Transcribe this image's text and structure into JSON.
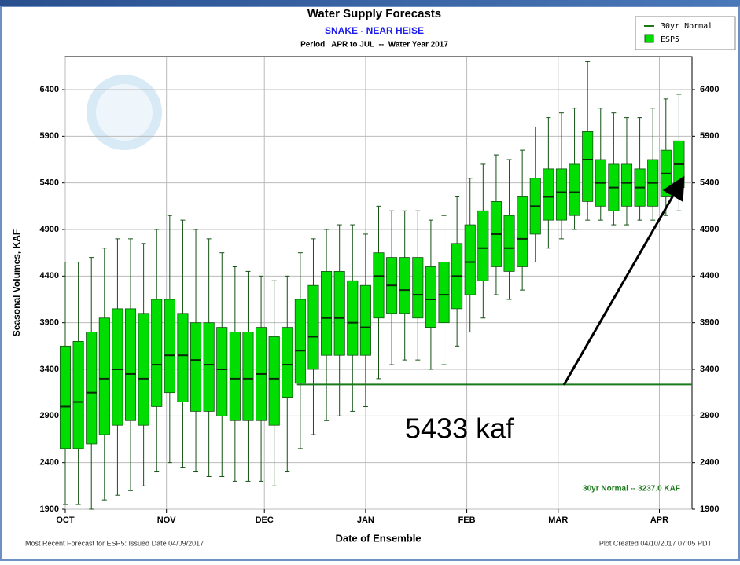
{
  "chart_data": {
    "type": "box",
    "title": "Water Supply Forecasts",
    "subtitle": "SNAKE - NEAR HEISE",
    "period": "Period   APR to JUL  --  Water Year 2017",
    "y_label": "Seasonal Volumes, KAF",
    "x_label": "Date of Ensemble",
    "footer_left": "Most Recent Forecast for ESP5: Issued Date 04/09/2017",
    "footer_right": "Plot Created 04/10/2017 07:05 PDT",
    "xlim": [
      0,
      192
    ],
    "xticks": [
      {
        "value": 0,
        "label": "OCT"
      },
      {
        "value": 31,
        "label": "NOV"
      },
      {
        "value": 61,
        "label": "DEC"
      },
      {
        "value": 92,
        "label": "JAN"
      },
      {
        "value": 123,
        "label": "FEB"
      },
      {
        "value": 151,
        "label": "MAR"
      },
      {
        "value": 182,
        "label": "APR"
      }
    ],
    "ylim": [
      1900,
      6754
    ],
    "yticks": [
      1900,
      2400,
      2900,
      3400,
      3900,
      4400,
      4900,
      5400,
      5900,
      6400
    ],
    "grid": true,
    "legend": "top-right",
    "normal": {
      "name": "30yr Normal",
      "label": "30yr Normal -- 3237.0 KAF",
      "value": 3237,
      "x": [
        71,
        192
      ],
      "color": "#1a7a1a"
    },
    "annotation": {
      "text": "5433 kaf",
      "value": 5433,
      "x": 189
    },
    "series": [
      {
        "name": "ESP5",
        "color": "#00dd00",
        "stroke": "#145214",
        "x": [
          0,
          4,
          8,
          12,
          16,
          20,
          24,
          28,
          32,
          36,
          40,
          44,
          48,
          52,
          56,
          60,
          64,
          68,
          72,
          76,
          80,
          84,
          88,
          92,
          96,
          100,
          104,
          108,
          112,
          116,
          120,
          124,
          128,
          132,
          136,
          140,
          144,
          148,
          152,
          156,
          160,
          164,
          168,
          172,
          176,
          180,
          184,
          188
        ],
        "low": [
          1950,
          1950,
          1900,
          2000,
          2050,
          2100,
          2150,
          2300,
          2400,
          2350,
          2300,
          2250,
          2250,
          2200,
          2200,
          2200,
          2150,
          2300,
          2550,
          2700,
          2850,
          2900,
          2950,
          3000,
          3300,
          3450,
          3500,
          3500,
          3400,
          3450,
          3650,
          3800,
          3950,
          4200,
          4150,
          4250,
          4550,
          4700,
          4800,
          4900,
          5000,
          5000,
          4950,
          4950,
          5000,
          5000,
          5050,
          5100
        ],
        "q1": [
          2550,
          2550,
          2600,
          2700,
          2800,
          2850,
          2800,
          3000,
          3150,
          3050,
          2950,
          2950,
          2900,
          2850,
          2850,
          2850,
          2800,
          3100,
          3250,
          3400,
          3550,
          3550,
          3550,
          3550,
          3950,
          4000,
          4000,
          3950,
          3850,
          3900,
          4050,
          4200,
          4350,
          4500,
          4450,
          4500,
          4850,
          5000,
          5000,
          5050,
          5200,
          5150,
          5100,
          5150,
          5150,
          5150,
          5250,
          5350
        ],
        "median": [
          3000,
          3050,
          3150,
          3300,
          3400,
          3350,
          3300,
          3450,
          3550,
          3550,
          3500,
          3450,
          3400,
          3300,
          3300,
          3350,
          3300,
          3450,
          3600,
          3750,
          3950,
          3950,
          3900,
          3850,
          4400,
          4300,
          4250,
          4200,
          4150,
          4200,
          4400,
          4550,
          4700,
          4850,
          4700,
          4800,
          5150,
          5250,
          5300,
          5300,
          5650,
          5400,
          5350,
          5400,
          5350,
          5400,
          5500,
          5600
        ],
        "q3": [
          3650,
          3700,
          3800,
          3950,
          4050,
          4050,
          4000,
          4150,
          4150,
          4000,
          3900,
          3900,
          3850,
          3800,
          3800,
          3850,
          3750,
          3850,
          4150,
          4300,
          4450,
          4450,
          4350,
          4300,
          4650,
          4600,
          4600,
          4600,
          4500,
          4550,
          4750,
          4950,
          5100,
          5200,
          5050,
          5250,
          5450,
          5550,
          5550,
          5600,
          5950,
          5650,
          5600,
          5600,
          5550,
          5650,
          5750,
          5850
        ],
        "high": [
          4550,
          4550,
          4600,
          4700,
          4800,
          4800,
          4750,
          4900,
          5050,
          5000,
          4900,
          4800,
          4650,
          4500,
          4450,
          4400,
          4350,
          4400,
          4650,
          4800,
          4900,
          4950,
          4950,
          4850,
          5150,
          5100,
          5100,
          5100,
          5000,
          5050,
          5250,
          5450,
          5600,
          5700,
          5650,
          5750,
          6000,
          6100,
          6150,
          6200,
          6700,
          6200,
          6150,
          6100,
          6100,
          6200,
          6300,
          6350
        ]
      }
    ]
  }
}
